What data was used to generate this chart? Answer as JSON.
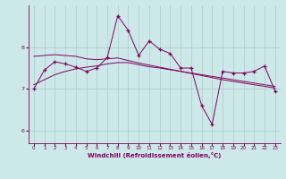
{
  "xlabel": "Windchill (Refroidissement éolien,°C)",
  "ylabel": "",
  "bg_color": "#cce8e8",
  "line_color": "#800060",
  "grid_color": "#aacccc",
  "xlim": [
    -0.5,
    23.5
  ],
  "ylim": [
    5.7,
    9.0
  ],
  "yticks": [
    6,
    7,
    8
  ],
  "xticks": [
    0,
    1,
    2,
    3,
    4,
    5,
    6,
    7,
    8,
    9,
    10,
    11,
    12,
    13,
    14,
    15,
    16,
    17,
    18,
    19,
    20,
    21,
    22,
    23
  ],
  "main_data": [
    7.0,
    7.45,
    7.65,
    7.6,
    7.52,
    7.42,
    7.5,
    7.75,
    8.75,
    8.4,
    7.8,
    8.15,
    7.95,
    7.85,
    7.5,
    7.5,
    6.6,
    6.15,
    7.42,
    7.38,
    7.38,
    7.42,
    7.55,
    6.95
  ],
  "trend1_data": [
    7.78,
    7.8,
    7.82,
    7.8,
    7.78,
    7.72,
    7.7,
    7.72,
    7.74,
    7.68,
    7.62,
    7.57,
    7.52,
    7.47,
    7.42,
    7.37,
    7.32,
    7.27,
    7.22,
    7.18,
    7.14,
    7.1,
    7.06,
    7.02
  ],
  "trend2_data": [
    7.1,
    7.22,
    7.34,
    7.42,
    7.48,
    7.52,
    7.55,
    7.6,
    7.63,
    7.63,
    7.58,
    7.53,
    7.5,
    7.46,
    7.42,
    7.38,
    7.34,
    7.3,
    7.26,
    7.22,
    7.18,
    7.14,
    7.1,
    7.06
  ],
  "tick_fontsize": 4.0,
  "xlabel_fontsize": 5.0
}
